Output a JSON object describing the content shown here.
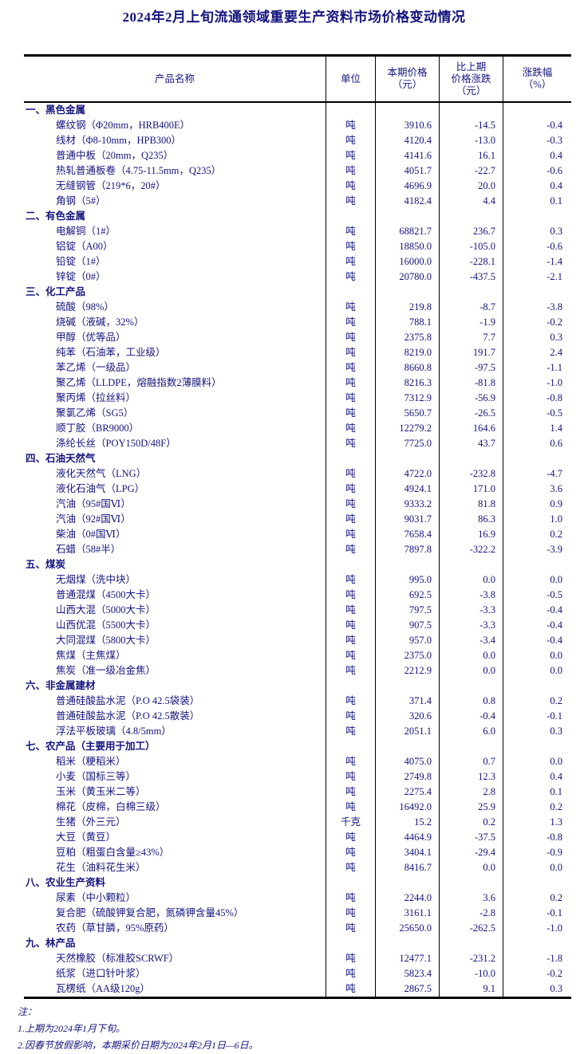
{
  "page": {
    "title": "2024年2月上旬流通领域重要生产资料市场价格变动情况"
  },
  "table": {
    "headers": {
      "product": "产品名称",
      "unit": "单位",
      "price": "本期价格\n（元）",
      "change": "比上期\n价格涨跌\n（元）",
      "pct": "涨跌幅\n（%）"
    },
    "sections": [
      {
        "name": "一、黑色金属",
        "items": [
          [
            "螺纹钢（Φ20mm，HRB400E）",
            "吨",
            "3910.6",
            "-14.5",
            "-0.4"
          ],
          [
            "线材（Φ8-10mm，HPB300）",
            "吨",
            "4120.4",
            "-13.0",
            "-0.3"
          ],
          [
            "普通中板（20mm，Q235）",
            "吨",
            "4141.6",
            "16.1",
            "0.4"
          ],
          [
            "热轧普通板卷（4.75-11.5mm，Q235）",
            "吨",
            "4051.7",
            "-22.7",
            "-0.6"
          ],
          [
            "无缝钢管（219*6，20#）",
            "吨",
            "4696.9",
            "20.0",
            "0.4"
          ],
          [
            "角钢（5#）",
            "吨",
            "4182.4",
            "4.4",
            "0.1"
          ]
        ]
      },
      {
        "name": "二、有色金属",
        "items": [
          [
            "电解铜（1#）",
            "吨",
            "68821.7",
            "236.7",
            "0.3"
          ],
          [
            "铝锭（A00）",
            "吨",
            "18850.0",
            "-105.0",
            "-0.6"
          ],
          [
            "铅锭（1#）",
            "吨",
            "16000.0",
            "-228.1",
            "-1.4"
          ],
          [
            "锌锭（0#）",
            "吨",
            "20780.0",
            "-437.5",
            "-2.1"
          ]
        ]
      },
      {
        "name": "三、化工产品",
        "items": [
          [
            "硫酸（98%）",
            "吨",
            "219.8",
            "-8.7",
            "-3.8"
          ],
          [
            "烧碱（液碱，32%）",
            "吨",
            "788.1",
            "-1.9",
            "-0.2"
          ],
          [
            "甲醇（优等品）",
            "吨",
            "2375.8",
            "7.7",
            "0.3"
          ],
          [
            "纯苯（石油苯，工业级）",
            "吨",
            "8219.0",
            "191.7",
            "2.4"
          ],
          [
            "苯乙烯（一级品）",
            "吨",
            "8660.8",
            "-97.5",
            "-1.1"
          ],
          [
            "聚乙烯（LLDPE，熔融指数2薄膜料）",
            "吨",
            "8216.3",
            "-81.8",
            "-1.0"
          ],
          [
            "聚丙烯（拉丝料）",
            "吨",
            "7312.9",
            "-56.9",
            "-0.8"
          ],
          [
            "聚氯乙烯（SG5）",
            "吨",
            "5650.7",
            "-26.5",
            "-0.5"
          ],
          [
            "顺丁胶（BR9000）",
            "吨",
            "12279.2",
            "164.6",
            "1.4"
          ],
          [
            "涤纶长丝（POY150D/48F）",
            "吨",
            "7725.0",
            "43.7",
            "0.6"
          ]
        ]
      },
      {
        "name": "四、石油天然气",
        "items": [
          [
            "液化天然气（LNG）",
            "吨",
            "4722.0",
            "-232.8",
            "-4.7"
          ],
          [
            "液化石油气（LPG）",
            "吨",
            "4924.1",
            "171.0",
            "3.6"
          ],
          [
            "汽油（95#国Ⅵ）",
            "吨",
            "9333.2",
            "81.8",
            "0.9"
          ],
          [
            "汽油（92#国Ⅵ）",
            "吨",
            "9031.7",
            "86.3",
            "1.0"
          ],
          [
            "柴油（0#国Ⅵ）",
            "吨",
            "7658.4",
            "16.9",
            "0.2"
          ],
          [
            "石蜡（58#半）",
            "吨",
            "7897.8",
            "-322.2",
            "-3.9"
          ]
        ]
      },
      {
        "name": "五、煤炭",
        "items": [
          [
            "无烟煤（洗中块）",
            "吨",
            "995.0",
            "0.0",
            "0.0"
          ],
          [
            "普通混煤（4500大卡）",
            "吨",
            "692.5",
            "-3.8",
            "-0.5"
          ],
          [
            "山西大混（5000大卡）",
            "吨",
            "797.5",
            "-3.3",
            "-0.4"
          ],
          [
            "山西优混（5500大卡）",
            "吨",
            "907.5",
            "-3.3",
            "-0.4"
          ],
          [
            "大同混煤（5800大卡）",
            "吨",
            "957.0",
            "-3.4",
            "-0.4"
          ],
          [
            "焦煤（主焦煤）",
            "吨",
            "2375.0",
            "0.0",
            "0.0"
          ],
          [
            "焦炭（准一级冶金焦）",
            "吨",
            "2212.9",
            "0.0",
            "0.0"
          ]
        ]
      },
      {
        "name": "六、非金属建材",
        "items": [
          [
            "普通硅酸盐水泥（P.O 42.5袋装）",
            "吨",
            "371.4",
            "0.8",
            "0.2"
          ],
          [
            "普通硅酸盐水泥（P.O 42.5散装）",
            "吨",
            "320.6",
            "-0.4",
            "-0.1"
          ],
          [
            "浮法平板玻璃（4.8/5mm）",
            "吨",
            "2051.1",
            "6.0",
            "0.3"
          ]
        ]
      },
      {
        "name": "七、农产品（主要用于加工）",
        "items": [
          [
            "稻米（粳稻米）",
            "吨",
            "4075.0",
            "0.7",
            "0.0"
          ],
          [
            "小麦（国标三等）",
            "吨",
            "2749.8",
            "12.3",
            "0.4"
          ],
          [
            "玉米（黄玉米二等）",
            "吨",
            "2275.4",
            "2.8",
            "0.1"
          ],
          [
            "棉花（皮棉，白棉三级）",
            "吨",
            "16492.0",
            "25.9",
            "0.2"
          ],
          [
            "生猪（外三元）",
            "千克",
            "15.2",
            "0.2",
            "1.3"
          ],
          [
            "大豆（黄豆）",
            "吨",
            "4464.9",
            "-37.5",
            "-0.8"
          ],
          [
            "豆粕（粗蛋白含量≥43%）",
            "吨",
            "3404.1",
            "-29.4",
            "-0.9"
          ],
          [
            "花生（油料花生米）",
            "吨",
            "8416.7",
            "0.0",
            "0.0"
          ]
        ]
      },
      {
        "name": "八、农业生产资料",
        "items": [
          [
            "尿素（中小颗粒）",
            "吨",
            "2244.0",
            "3.6",
            "0.2"
          ],
          [
            "复合肥（硫酸钾复合肥，氮磷钾含量45%）",
            "吨",
            "3161.1",
            "-2.8",
            "-0.1"
          ],
          [
            "农药（草甘膦，95%原药）",
            "吨",
            "25650.0",
            "-262.5",
            "-1.0"
          ]
        ]
      },
      {
        "name": "九、林产品",
        "items": [
          [
            "天然橡胶（标准胶SCRWF）",
            "吨",
            "12477.1",
            "-231.2",
            "-1.8"
          ],
          [
            "纸浆（进口针叶浆）",
            "吨",
            "5823.4",
            "-10.0",
            "-0.2"
          ],
          [
            "瓦楞纸（AA级120g）",
            "吨",
            "2867.5",
            "9.1",
            "0.3"
          ]
        ]
      }
    ]
  },
  "notes": {
    "label": "注：",
    "lines": [
      "1.上期为2024年1月下旬。",
      "2.因春节放假影响，本期采价日期为2024年2月1日—6日。"
    ]
  },
  "colors": {
    "text": "#14147d",
    "border": "#000000"
  }
}
